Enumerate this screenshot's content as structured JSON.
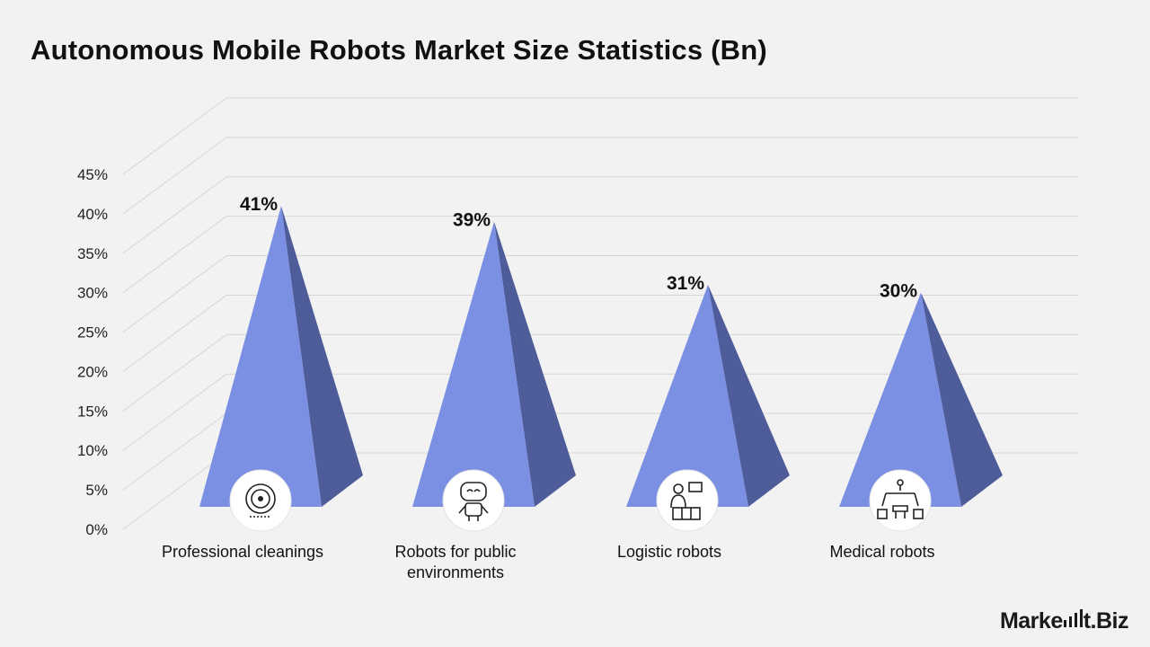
{
  "title": "Autonomous Mobile Robots Market Size Statistics (Bn)",
  "brand": {
    "name_left": "Marke",
    "name_right": "t.Biz",
    "icon": "bar-chart-icon"
  },
  "chart_data": {
    "type": "bar",
    "style": "3d-pyramid",
    "categories": [
      "Professional cleanings",
      "Robots for public environments",
      "Logistic robots",
      "Medical robots"
    ],
    "category_lines": [
      [
        "Professional cleanings"
      ],
      [
        "Robots for public",
        "environments"
      ],
      [
        "Logistic robots"
      ],
      [
        "Medical robots"
      ]
    ],
    "values": [
      41,
      39,
      31,
      30
    ],
    "data_labels": [
      "41%",
      "39%",
      "31%",
      "30%"
    ],
    "y_ticks": [
      "0%",
      "5%",
      "10%",
      "15%",
      "20%",
      "25%",
      "30%",
      "35%",
      "40%",
      "45%"
    ],
    "ylim": [
      0,
      45
    ],
    "grid": true,
    "legend": "none",
    "icons": [
      "robot-vacuum-icon",
      "robot-head-icon",
      "delivery-worker-icon",
      "robotic-arms-icon"
    ],
    "colors": {
      "front": "#7b8fe3",
      "side": "#4f5c9a",
      "grid": "#d6d6d6",
      "background": "#f2f2f2"
    }
  }
}
